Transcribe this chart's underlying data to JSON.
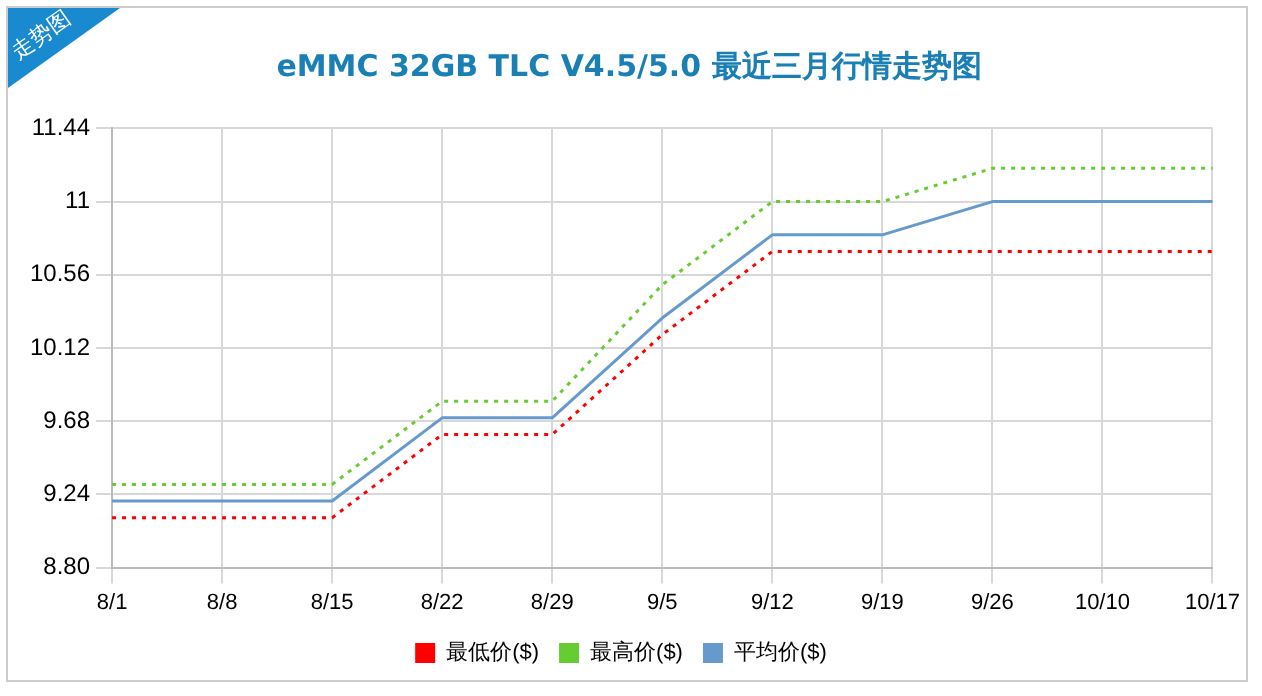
{
  "chart_data": {
    "type": "line",
    "title": "eMMC 32GB TLC V4.5/5.0 最近三月行情走势图",
    "annotations": [
      "走势图"
    ],
    "categories": [
      "8/1",
      "8/8",
      "8/15",
      "8/22",
      "8/29",
      "9/5",
      "9/12",
      "9/19",
      "9/26",
      "10/10",
      "10/17"
    ],
    "series": [
      {
        "name": "最低价($)",
        "color": "#ff0000",
        "line_style": "dotted",
        "values": [
          9.1,
          9.1,
          9.1,
          9.6,
          9.6,
          10.2,
          10.7,
          10.7,
          10.7,
          10.7,
          10.7
        ]
      },
      {
        "name": "最高价($)",
        "color": "#66cc33",
        "line_style": "dotted",
        "values": [
          9.3,
          9.3,
          9.3,
          9.8,
          9.8,
          10.5,
          11.0,
          11.0,
          11.2,
          11.2,
          11.2
        ]
      },
      {
        "name": "平均价($)",
        "color": "#6699cc",
        "line_style": "solid",
        "values": [
          9.2,
          9.2,
          9.2,
          9.7,
          9.7,
          10.3,
          10.8,
          10.8,
          11.0,
          11.0,
          11.0
        ]
      }
    ],
    "ylim": [
      8.8,
      11.44
    ],
    "yticks": [
      {
        "value": 8.8,
        "label": "8.80"
      },
      {
        "value": 9.24,
        "label": "9.24"
      },
      {
        "value": 9.68,
        "label": "9.68"
      },
      {
        "value": 10.12,
        "label": "10.12"
      },
      {
        "value": 10.56,
        "label": "10.56"
      },
      11,
      {
        "value": 11.44,
        "label": "11.44"
      }
    ],
    "grid": true,
    "legend": "bottom",
    "marker": "none"
  }
}
